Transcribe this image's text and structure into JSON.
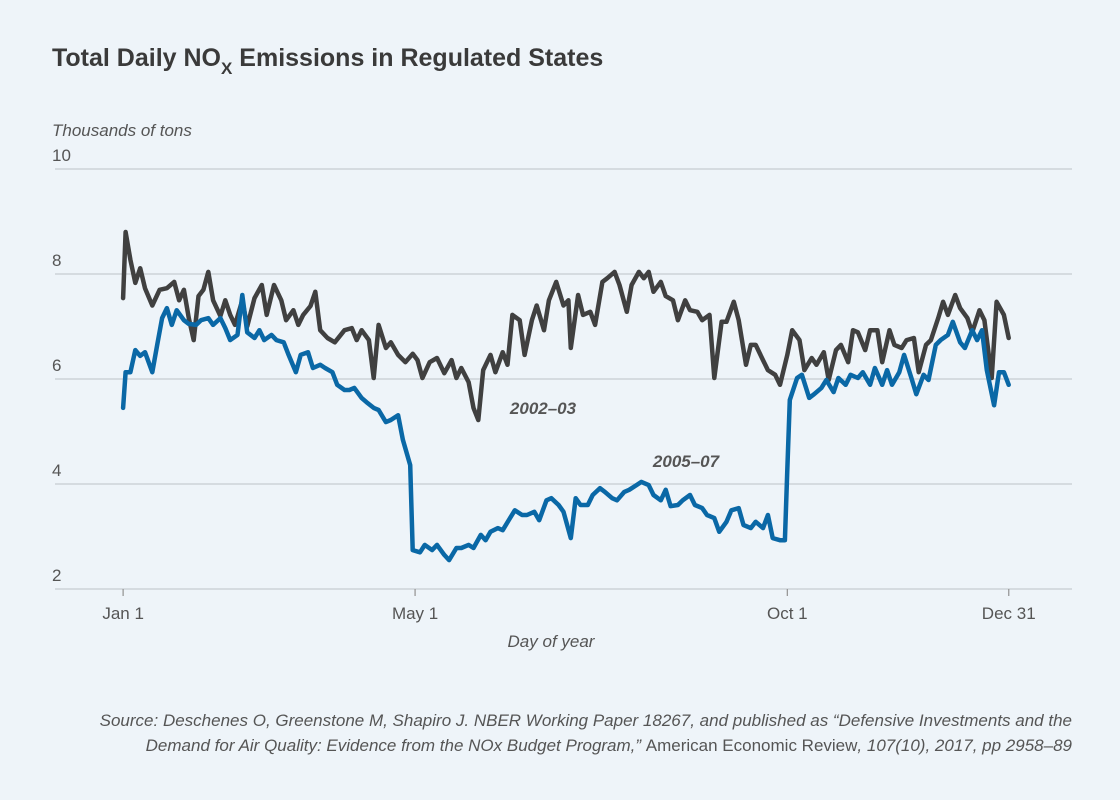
{
  "chart_data": {
    "type": "line",
    "title": [
      "Total Daily NO",
      "X",
      " Emissions in Regulated States"
    ],
    "y_label": "Thousands of tons",
    "x_label": "Day of year",
    "source": [
      [
        "Source: Deschenes O, Greenstone M, Shapiro J. NBER Working Paper 18267, and published as “Defensive Investments and the"
      ],
      [
        "Demand for Air Quality: Evidence from the NOx Budget Program,” ",
        "American Economic Review",
        ", 107(10), 2017, pp 2958–89"
      ]
    ],
    "xlim": [
      -27,
      391
    ],
    "xticks": [
      {
        "value": 1,
        "label": "Jan 1"
      },
      {
        "value": 121,
        "label": "May 1"
      },
      {
        "value": 274,
        "label": "Oct 1"
      },
      {
        "value": 365,
        "label": "Dec 31"
      }
    ],
    "ylim": [
      2,
      10
    ],
    "yticks": [
      2,
      4,
      6,
      8,
      10
    ],
    "grid": true,
    "series": [
      {
        "name": "2002–03",
        "color": "#404040",
        "x": [
          1,
          2,
          4,
          6,
          8,
          10,
          13,
          16,
          19,
          22,
          24,
          26,
          28,
          30,
          32,
          34,
          36,
          38,
          41,
          43,
          45,
          47,
          50,
          52,
          55,
          58,
          60,
          63,
          66,
          68,
          71,
          73,
          75,
          78,
          80,
          82,
          85,
          88,
          92,
          95,
          97,
          99,
          102,
          104,
          106,
          109,
          111,
          114,
          117,
          120,
          122,
          124,
          127,
          130,
          133,
          136,
          138,
          140,
          143,
          145,
          147,
          149,
          152,
          154,
          157,
          159,
          161,
          164,
          166,
          169,
          171,
          174,
          176,
          179,
          182,
          184,
          185,
          188,
          190,
          193,
          195,
          198,
          200,
          203,
          205,
          208,
          210,
          213,
          215,
          217,
          219,
          222,
          224,
          227,
          229,
          232,
          234,
          237,
          239,
          242,
          244,
          247,
          249,
          252,
          254,
          257,
          259,
          261,
          264,
          266,
          269,
          271,
          274,
          276,
          279,
          281,
          284,
          286,
          289,
          291,
          294,
          296,
          299,
          301,
          303,
          306,
          308,
          311,
          313,
          316,
          318,
          321,
          323,
          326,
          328,
          331,
          333,
          336,
          338,
          340,
          343,
          345,
          348,
          350,
          353,
          355,
          358,
          360,
          363,
          365
        ],
        "values": [
          7.54,
          8.8,
          8.27,
          7.83,
          8.11,
          7.73,
          7.4,
          7.7,
          7.73,
          7.85,
          7.5,
          7.7,
          7.16,
          6.74,
          7.58,
          7.7,
          8.04,
          7.5,
          7.2,
          7.5,
          7.22,
          7.03,
          7.5,
          7.0,
          7.54,
          7.79,
          7.22,
          7.79,
          7.5,
          7.12,
          7.31,
          7.03,
          7.22,
          7.39,
          7.66,
          6.93,
          6.78,
          6.7,
          6.93,
          6.97,
          6.74,
          6.93,
          6.74,
          6.02,
          7.03,
          6.59,
          6.7,
          6.46,
          6.32,
          6.48,
          6.36,
          6.02,
          6.32,
          6.4,
          6.11,
          6.36,
          6.02,
          6.21,
          5.94,
          5.45,
          5.22,
          6.17,
          6.46,
          6.13,
          6.51,
          6.27,
          7.22,
          7.12,
          6.46,
          7.12,
          7.4,
          6.93,
          7.5,
          7.85,
          7.4,
          7.5,
          6.59,
          7.6,
          7.22,
          7.28,
          7.03,
          7.85,
          7.92,
          8.04,
          7.79,
          7.28,
          7.79,
          8.04,
          7.92,
          8.04,
          7.66,
          7.85,
          7.58,
          7.5,
          7.12,
          7.5,
          7.31,
          7.28,
          7.12,
          7.22,
          6.02,
          7.09,
          7.09,
          7.47,
          7.12,
          6.27,
          6.65,
          6.65,
          6.36,
          6.17,
          6.08,
          5.89,
          6.46,
          6.93,
          6.74,
          6.17,
          6.4,
          6.27,
          6.51,
          5.98,
          6.55,
          6.65,
          6.32,
          6.93,
          6.89,
          6.55,
          6.93,
          6.93,
          6.32,
          6.93,
          6.65,
          6.59,
          6.74,
          6.78,
          6.13,
          6.65,
          6.74,
          7.16,
          7.47,
          7.22,
          7.6,
          7.35,
          7.16,
          6.89,
          7.31,
          7.12,
          6.02,
          7.47,
          7.22,
          6.78
        ]
      },
      {
        "name": "2005–07",
        "color": "#0a68a6",
        "x": [
          1,
          2,
          4,
          6,
          8,
          10,
          13,
          15,
          17,
          19,
          21,
          23,
          26,
          28,
          31,
          33,
          36,
          38,
          41,
          43,
          45,
          48,
          50,
          52,
          55,
          57,
          59,
          62,
          64,
          67,
          69,
          72,
          74,
          77,
          79,
          82,
          84,
          87,
          89,
          92,
          94,
          96,
          99,
          101,
          104,
          106,
          109,
          111,
          114,
          116,
          119,
          120,
          123,
          125,
          128,
          130,
          133,
          135,
          138,
          140,
          143,
          145,
          148,
          150,
          152,
          155,
          157,
          160,
          162,
          165,
          167,
          170,
          172,
          175,
          177,
          180,
          182,
          185,
          187,
          189,
          192,
          194,
          197,
          199,
          202,
          204,
          207,
          209,
          212,
          214,
          217,
          219,
          222,
          224,
          226,
          229,
          231,
          234,
          236,
          239,
          241,
          244,
          246,
          249,
          251,
          254,
          256,
          259,
          261,
          264,
          266,
          268,
          271,
          273,
          274,
          275,
          278,
          280,
          283,
          285,
          288,
          290,
          293,
          295,
          298,
          300,
          303,
          305,
          308,
          310,
          313,
          315,
          317,
          320,
          322,
          325,
          327,
          330,
          332,
          335,
          337,
          340,
          342,
          345,
          347,
          350,
          352,
          354,
          356,
          359,
          361,
          363,
          365
        ],
        "values": [
          5.45,
          6.13,
          6.13,
          6.55,
          6.44,
          6.51,
          6.13,
          6.65,
          7.16,
          7.35,
          7.03,
          7.31,
          7.12,
          7.05,
          7.03,
          7.12,
          7.16,
          7.03,
          7.16,
          6.97,
          6.74,
          6.84,
          7.6,
          6.89,
          6.78,
          6.93,
          6.74,
          6.84,
          6.74,
          6.7,
          6.46,
          6.13,
          6.46,
          6.51,
          6.21,
          6.27,
          6.21,
          6.13,
          5.89,
          5.79,
          5.79,
          5.83,
          5.64,
          5.56,
          5.45,
          5.41,
          5.18,
          5.22,
          5.31,
          4.84,
          4.36,
          2.74,
          2.7,
          2.84,
          2.74,
          2.84,
          2.65,
          2.55,
          2.78,
          2.78,
          2.84,
          2.78,
          3.03,
          2.93,
          3.09,
          3.16,
          3.12,
          3.35,
          3.5,
          3.41,
          3.41,
          3.47,
          3.31,
          3.69,
          3.73,
          3.6,
          3.47,
          2.97,
          3.73,
          3.6,
          3.6,
          3.79,
          3.92,
          3.85,
          3.73,
          3.69,
          3.85,
          3.89,
          3.98,
          4.04,
          3.98,
          3.79,
          3.69,
          3.89,
          3.58,
          3.6,
          3.69,
          3.79,
          3.6,
          3.54,
          3.41,
          3.35,
          3.09,
          3.28,
          3.5,
          3.54,
          3.22,
          3.16,
          3.28,
          3.16,
          3.41,
          2.97,
          2.93,
          2.93,
          4.27,
          5.6,
          6.02,
          6.08,
          5.64,
          5.71,
          5.83,
          5.98,
          5.75,
          6.02,
          5.89,
          6.08,
          6.02,
          6.13,
          5.89,
          6.21,
          5.89,
          6.17,
          5.89,
          6.13,
          6.46,
          6.02,
          5.71,
          6.08,
          5.98,
          6.65,
          6.74,
          6.84,
          7.09,
          6.7,
          6.59,
          6.93,
          6.74,
          6.93,
          6.17,
          5.5,
          6.13,
          6.13,
          5.89
        ]
      }
    ]
  }
}
